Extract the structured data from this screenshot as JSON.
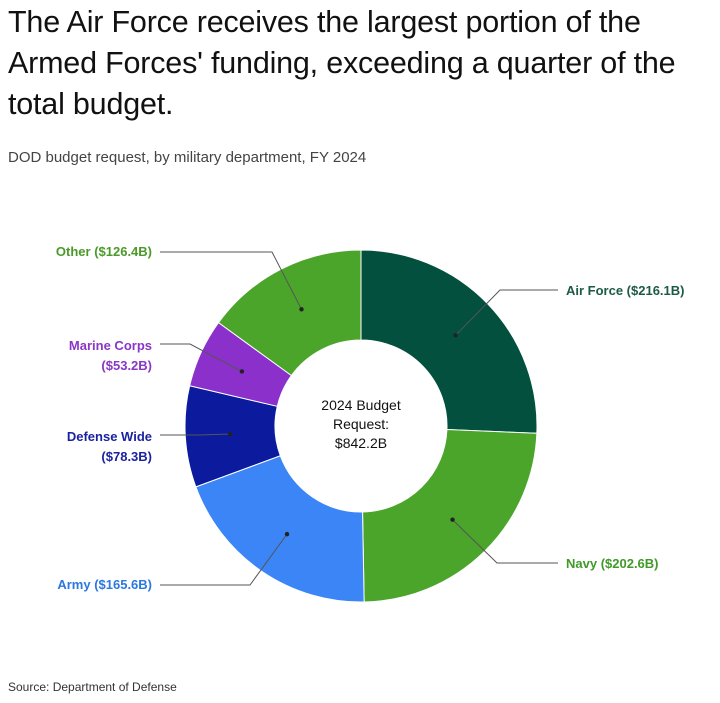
{
  "chart_data": {
    "type": "pie",
    "donut": true,
    "title": "The Air Force receives the largest portion of the Armed Forces' funding, exceeding a quarter of the total budget.",
    "subtitle": "DOD budget request, by military department, FY 2024",
    "source": "Source: Department of Defense",
    "center_label": [
      "2024 Budget",
      "Request:",
      "$842.2B"
    ],
    "unit": "$B",
    "slices": [
      {
        "name": "Air Force",
        "value": 216.1,
        "label": "Air Force ($216.1B)",
        "color": "#02503d",
        "label_color": "#1c5a47"
      },
      {
        "name": "Navy",
        "value": 202.6,
        "label": "Navy ($202.6B)",
        "color": "#4ba52a",
        "label_color": "#3f9a27"
      },
      {
        "name": "Army",
        "value": 165.6,
        "label": "Army ($165.6B)",
        "color": "#3b85f6",
        "label_color": "#2a78e0"
      },
      {
        "name": "Defense Wide",
        "value": 78.3,
        "label": [
          "Defense Wide",
          "($78.3B)"
        ],
        "color": "#0c1a9e",
        "label_color": "#1a22a0"
      },
      {
        "name": "Marine Corps",
        "value": 53.2,
        "label": [
          "Marine Corps",
          "($53.2B)"
        ],
        "color": "#8b30cb",
        "label_color": "#8a36c6"
      },
      {
        "name": "Other",
        "value": 126.4,
        "label": "Other ($126.4B)",
        "color": "#4ba52a",
        "label_color": "#4a9a2a"
      }
    ]
  }
}
